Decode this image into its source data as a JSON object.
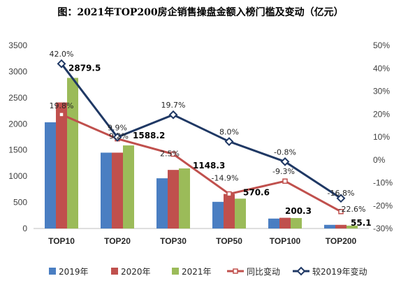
{
  "chart_data": {
    "type": "bar",
    "title": "图：2021年TOP200房企销售操盘金额入榜门槛及变动（亿元）",
    "categories": [
      "TOP10",
      "TOP20",
      "TOP30",
      "TOP50",
      "TOP100",
      "TOP200"
    ],
    "left_axis": {
      "min": 0,
      "max": 3500,
      "ticks": [
        "0",
        "500",
        "1000",
        "1500",
        "2000",
        "2500",
        "3000",
        "3500"
      ]
    },
    "right_axis": {
      "min": -30,
      "max": 50,
      "ticks": [
        "-30%",
        "-20%",
        "-10%",
        "0%",
        "10%",
        "20%",
        "30%",
        "40%",
        "50%"
      ]
    },
    "series": [
      {
        "name": "2019年",
        "type": "bar",
        "axis": "left",
        "color": "#4A7EC2",
        "values": [
          2030,
          1450,
          960,
          510,
          190,
          70
        ]
      },
      {
        "name": "2020年",
        "type": "bar",
        "axis": "left",
        "color": "#C0504D",
        "values": [
          2410,
          1450,
          1120,
          660,
          205,
          70
        ]
      },
      {
        "name": "2021年",
        "type": "bar",
        "axis": "left",
        "color": "#9BBB59",
        "values": [
          2879.5,
          1588.2,
          1148.3,
          570.6,
          200.3,
          55.1
        ],
        "labels": [
          "2879.5",
          "1588.2",
          "1148.3",
          "570.6",
          "200.3",
          "55.1"
        ]
      },
      {
        "name": "同比变动",
        "type": "line",
        "axis": "right",
        "color": "#C0504D",
        "values": [
          19.8,
          9.2,
          2.5,
          -14.9,
          -9.3,
          -22.6
        ],
        "labels": [
          "19.8%",
          "9.2%",
          "2.5%",
          "-14.9%",
          "-9.3%",
          "-22.6%"
        ]
      },
      {
        "name": "较2019年变动",
        "type": "line",
        "axis": "right",
        "color": "#1F3864",
        "values": [
          42.0,
          9.9,
          19.7,
          8.0,
          -0.8,
          -16.8
        ],
        "labels": [
          "42.0%",
          "9.9%",
          "19.7%",
          "8.0%",
          "-0.8%",
          "-16.8%"
        ]
      }
    ],
    "legend": {
      "position": "bottom"
    },
    "grid": false
  }
}
